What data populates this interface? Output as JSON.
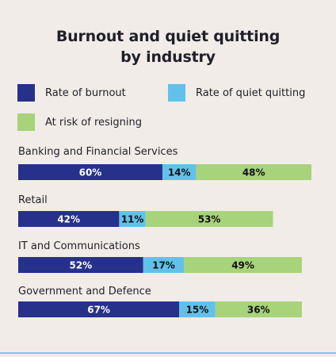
{
  "title_line1": "Burnout and quiet quitting",
  "title_line2": "by industry",
  "colors": {
    "burnout": "#25318a",
    "quiet_quitting": "#62c1ea",
    "resigning": "#a7d37a"
  },
  "chart_data": {
    "type": "bar",
    "orientation": "horizontal",
    "stacked": true,
    "title": "Burnout and quiet quitting by industry",
    "legend": [
      "Rate of burnout",
      "Rate of quiet quitting",
      "At risk of resigning"
    ],
    "categories": [
      "Banking and Financial Services",
      "Retail",
      "IT and Communications",
      "Government and Defence"
    ],
    "series": [
      {
        "name": "Rate of burnout",
        "values": [
          60,
          42,
          52,
          67
        ],
        "labels": [
          "60%",
          "42%",
          "52%",
          "67%"
        ]
      },
      {
        "name": "Rate of quiet quitting",
        "values": [
          14,
          11,
          17,
          15
        ],
        "labels": [
          "14%",
          "11%",
          "17%",
          "15%"
        ]
      },
      {
        "name": "At risk of resigning",
        "values": [
          48,
          53,
          49,
          36
        ],
        "labels": [
          "48%",
          "53%",
          "49%",
          "36%"
        ]
      }
    ]
  }
}
